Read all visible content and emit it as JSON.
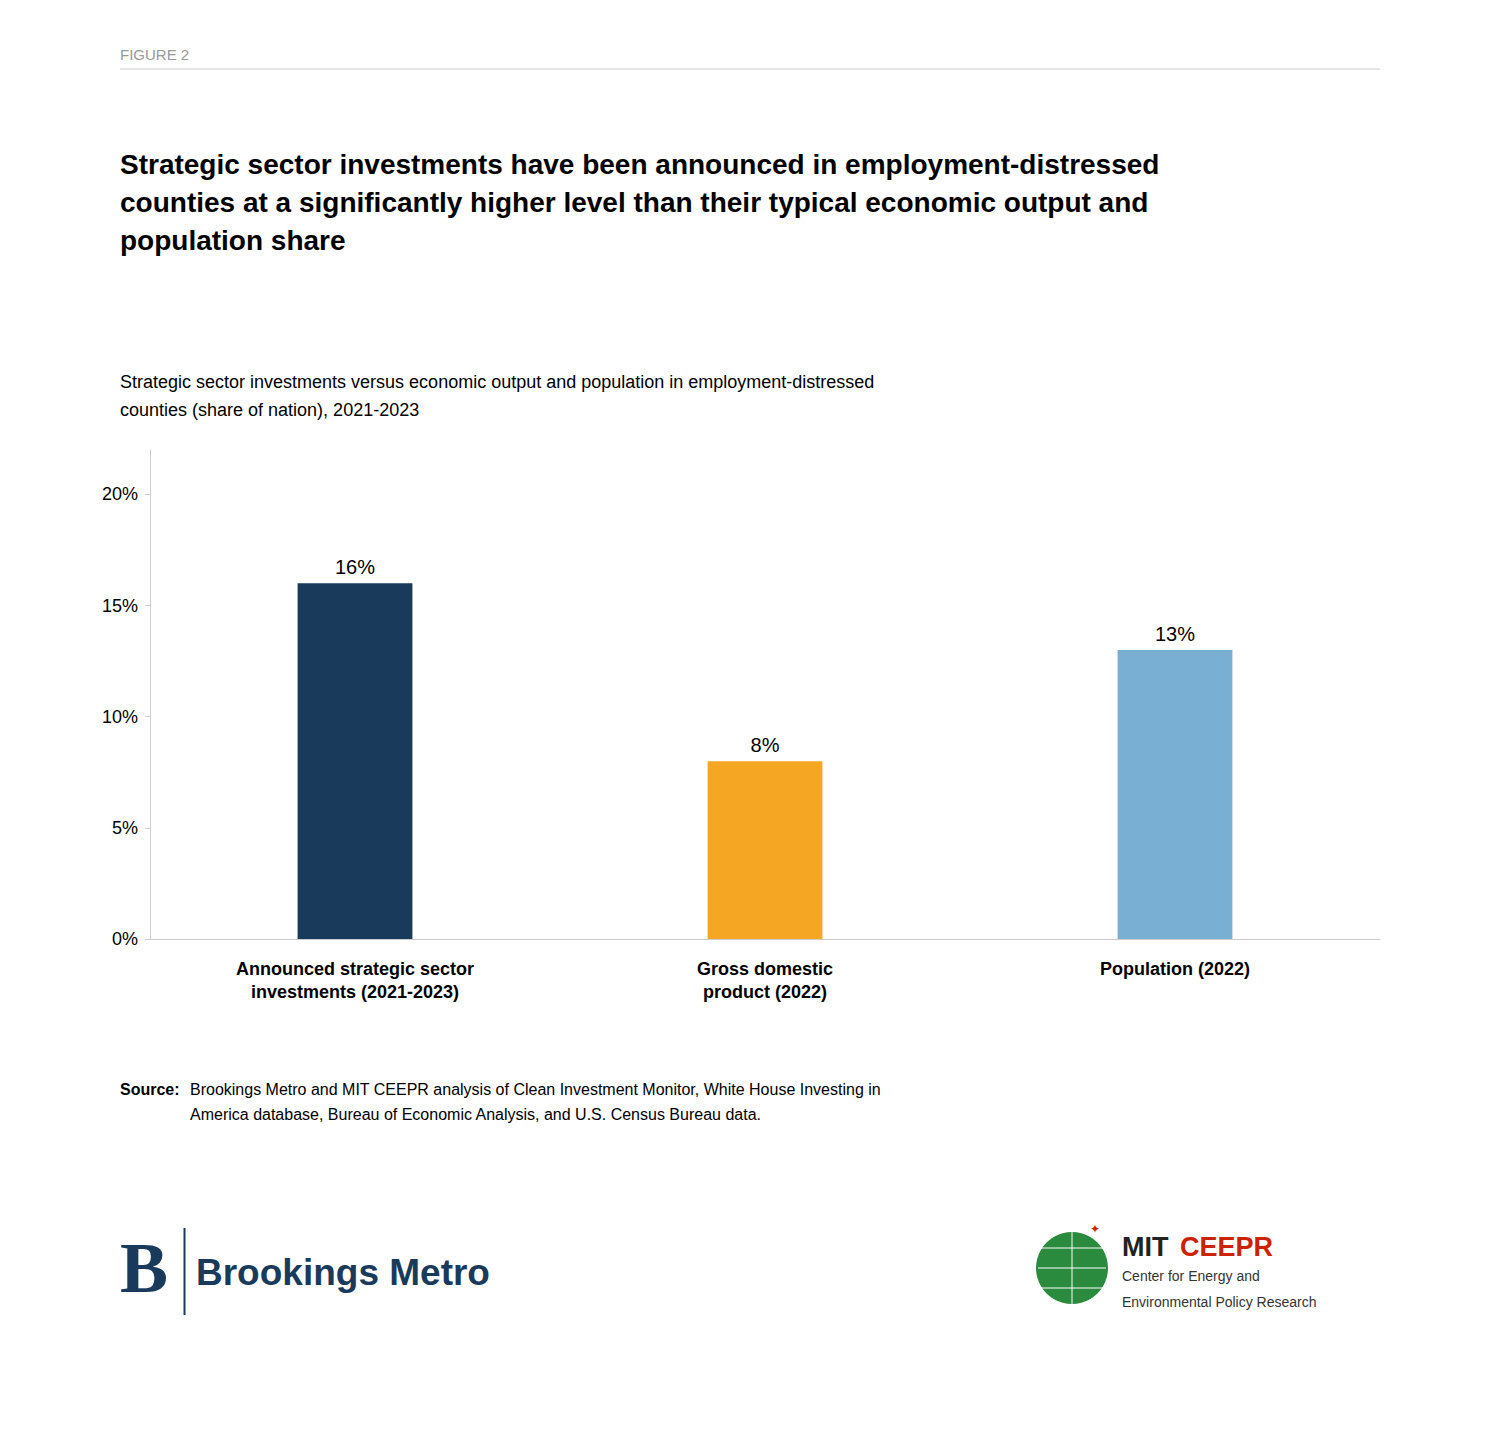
{
  "chart_data": {
    "type": "bar",
    "figure_label": "FIGURE 2",
    "title": "Strategic sector investments have been announced in employment-distressed\ncounties at a significantly higher level than their typical economic output and\npopulation share",
    "subtitle": "Strategic sector investments versus economic output and population in employment-distressed\ncounties (share of nation), 2021-2023",
    "categories": [
      "Announced strategic sector\ninvestments (2021-2023)",
      "Gross domestic\nproduct (2022)",
      "Population (2022)"
    ],
    "values": [
      16,
      8,
      13
    ],
    "value_labels": [
      "16%",
      "8%",
      "13%"
    ],
    "colors": [
      "#1a3a5c",
      "#f5a623",
      "#7aafd4"
    ],
    "data_labels": true,
    "ylim": [
      0,
      22
    ],
    "yticks": [
      {
        "value": 0,
        "label": "0%"
      },
      {
        "value": 5,
        "label": "5%"
      },
      {
        "value": 10,
        "label": "10%"
      },
      {
        "value": 15,
        "label": "15%"
      },
      {
        "value": 20,
        "label": "20%"
      }
    ],
    "grid": false,
    "source_label": "Source:",
    "source": "Brookings Metro and MIT CEEPR analysis of Clean Investment Monitor, White House Investing in\nAmerica database, Bureau of Economic Analysis, and U.S. Census Bureau data.",
    "annotations": [
      "B",
      "Brookings Metro",
      "✦",
      "MIT",
      "CEEPR",
      "Center for Energy and",
      "Environmental Policy Research"
    ]
  }
}
